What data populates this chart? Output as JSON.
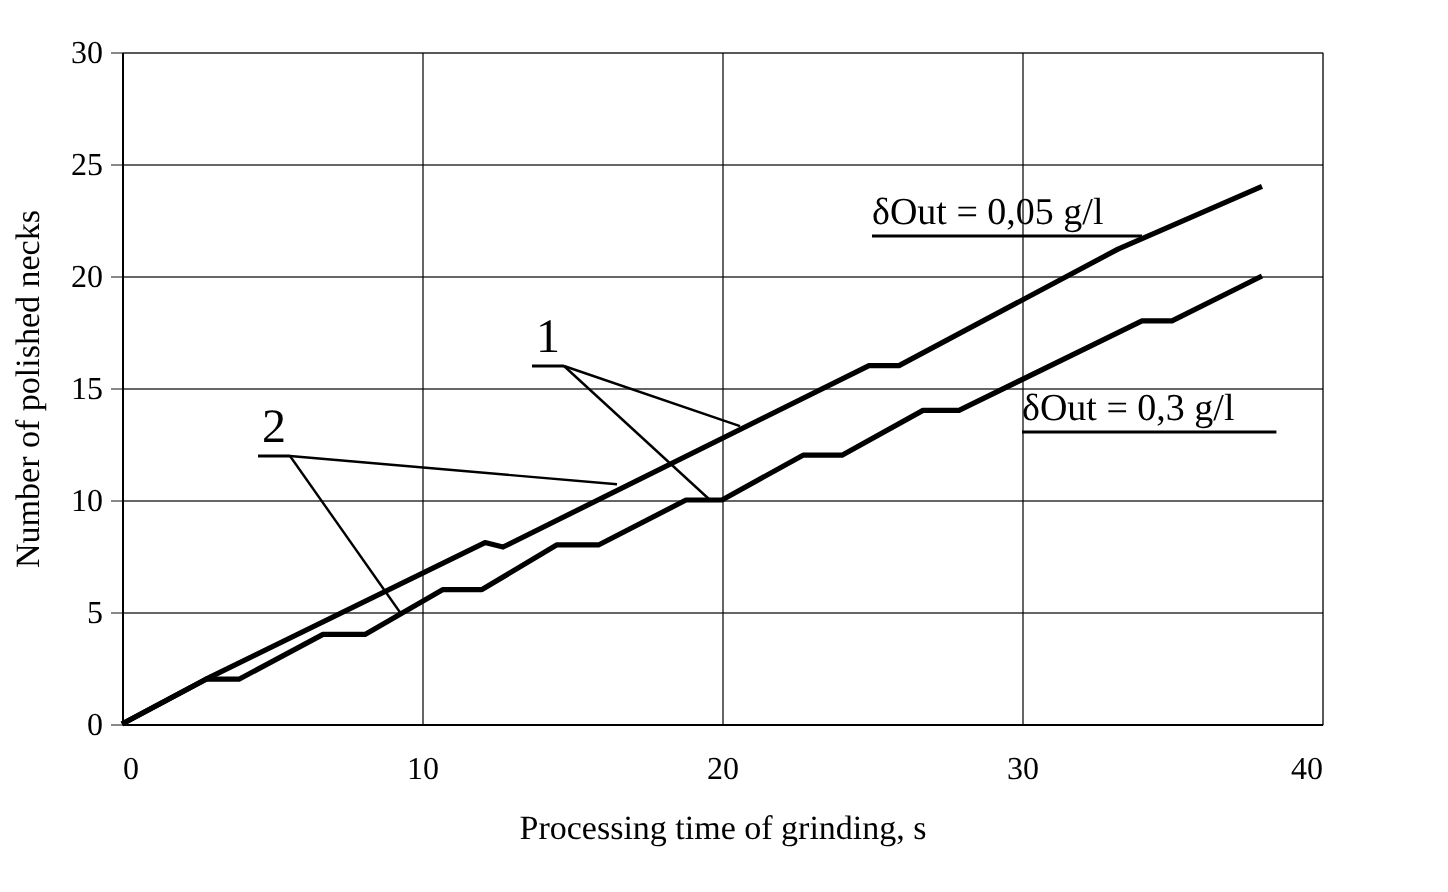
{
  "chart_data": {
    "type": "line",
    "xlabel": "Processing time of grinding, s",
    "ylabel": "Number of polished necks",
    "xlim": [
      0,
      40
    ],
    "xticks": [
      0,
      10,
      20,
      30,
      40
    ],
    "ylim": [
      0,
      30
    ],
    "yticks": [
      0,
      5,
      10,
      15,
      20,
      25,
      30
    ],
    "grid": true,
    "marker": "none",
    "line_style": "solid",
    "series": [
      {
        "name": "δOut = 0,05 g/l",
        "color": "#000000",
        "x": [
          0,
          2.8,
          12.1,
          12.7,
          24.9,
          25.9,
          33.2,
          38
        ],
        "values": [
          0,
          2,
          8.1,
          7.9,
          16,
          16,
          21.2,
          24
        ]
      },
      {
        "name": "δOut = 0,3 g/l",
        "color": "#000000",
        "x": [
          0,
          2.8,
          3.9,
          6.7,
          8.1,
          10.7,
          12,
          14.5,
          15.9,
          18.8,
          20,
          22.7,
          24,
          26.7,
          27.9,
          34,
          35,
          38
        ],
        "values": [
          0,
          2,
          2,
          4,
          4,
          6,
          6,
          8,
          8,
          10,
          10,
          12,
          12,
          14,
          14,
          18,
          18,
          20
        ]
      }
    ],
    "annotations": [
      {
        "text": "1",
        "x": 20.6,
        "y": 13.3
      },
      {
        "text": "2",
        "x": 16.5,
        "y": 10.7
      }
    ]
  }
}
